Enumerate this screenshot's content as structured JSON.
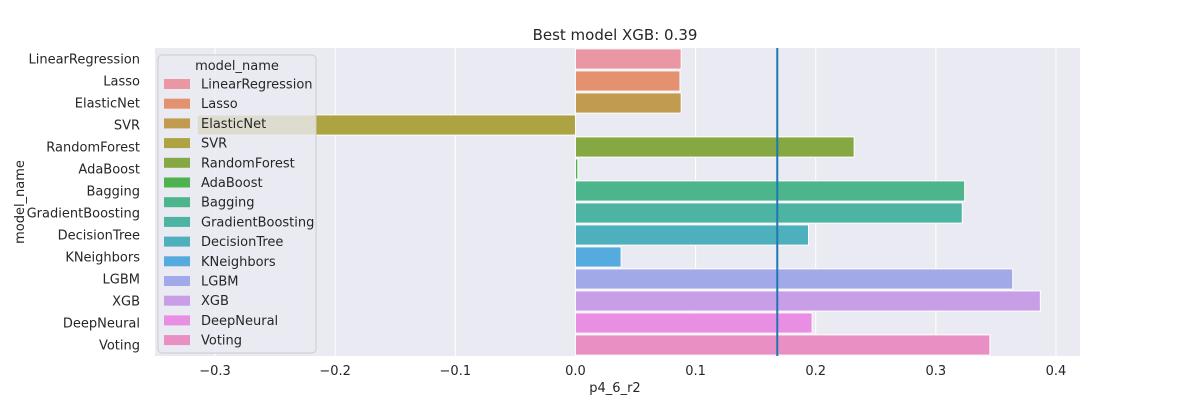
{
  "chart_data": {
    "type": "bar",
    "orientation": "horizontal",
    "title": "Best model XGB: 0.39",
    "xlabel": "p4_6_r2",
    "ylabel": "model_name",
    "xlim": [
      -0.35,
      0.42
    ],
    "xticks": [
      -0.3,
      -0.2,
      -0.1,
      0.0,
      0.1,
      0.2,
      0.3,
      0.4
    ],
    "xtick_labels": [
      "−0.3",
      "−0.2",
      "−0.1",
      "0.0",
      "0.1",
      "0.2",
      "0.3",
      "0.4"
    ],
    "grid": true,
    "reference_line": {
      "x": 0.168,
      "color": "#1f77b4"
    },
    "legend": {
      "title": "model_name",
      "position": "top-left"
    },
    "categories": [
      "LinearRegression",
      "Lasso",
      "ElasticNet",
      "SVR",
      "RandomForest",
      "AdaBoost",
      "Bagging",
      "GradientBoosting",
      "DecisionTree",
      "KNeighbors",
      "LGBM",
      "XGB",
      "DeepNeural",
      "Voting"
    ],
    "values": [
      0.088,
      0.087,
      0.088,
      -0.315,
      0.232,
      0.002,
      0.324,
      0.322,
      0.194,
      0.038,
      0.364,
      0.387,
      0.197,
      0.345
    ],
    "colors": [
      "#ea96a3",
      "#e3916e",
      "#c19b4f",
      "#ada342",
      "#86a843",
      "#4cb34f",
      "#4db58b",
      "#4db3a2",
      "#4fb0bd",
      "#55abdd",
      "#a2a9e9",
      "#c89ee7",
      "#e88ee3",
      "#e88fc4"
    ]
  }
}
